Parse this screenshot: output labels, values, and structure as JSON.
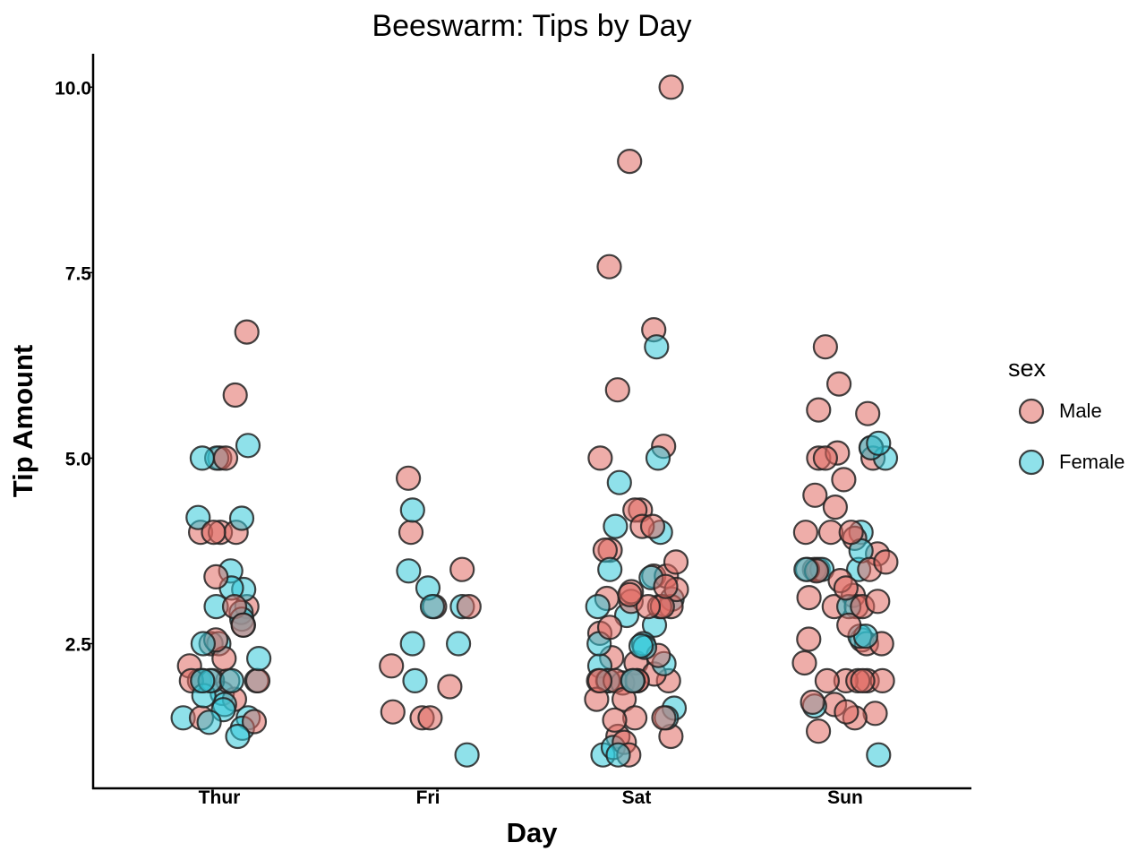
{
  "chart_data": {
    "type": "scatter",
    "subtype": "beeswarm",
    "title": "Beeswarm: Tips by Day",
    "xlabel": "Day",
    "ylabel": "Tip Amount",
    "categories": [
      "Thur",
      "Fri",
      "Sat",
      "Sun"
    ],
    "ylim": [
      0.55,
      10.45
    ],
    "yticks": [
      2.5,
      5.0,
      7.5,
      10.0
    ],
    "ytick_labels": [
      "2.5",
      "5.0",
      "7.5",
      "10.0"
    ],
    "grid": false,
    "legend": {
      "title": "sex",
      "placement": "right"
    },
    "colors": {
      "Male": "#E06A62",
      "Female": "#33C8D8",
      "edge": "#222222"
    },
    "series": [
      {
        "name": "Male",
        "points": [
          [
            "Thur",
            6.7
          ],
          [
            "Thur",
            5.85
          ],
          [
            "Thur",
            5.0
          ],
          [
            "Thur",
            5.0
          ],
          [
            "Thur",
            4.0
          ],
          [
            "Thur",
            4.0
          ],
          [
            "Thur",
            4.0
          ],
          [
            "Thur",
            4.0
          ],
          [
            "Thur",
            3.4
          ],
          [
            "Thur",
            3.0
          ],
          [
            "Thur",
            3.0
          ],
          [
            "Thur",
            2.75
          ],
          [
            "Thur",
            2.5
          ],
          [
            "Thur",
            2.55
          ],
          [
            "Thur",
            2.3
          ],
          [
            "Thur",
            2.2
          ],
          [
            "Thur",
            2.0
          ],
          [
            "Thur",
            2.0
          ],
          [
            "Thur",
            2.0
          ],
          [
            "Thur",
            2.0
          ],
          [
            "Thur",
            2.0
          ],
          [
            "Thur",
            1.75
          ],
          [
            "Thur",
            1.5
          ],
          [
            "Thur",
            1.45
          ],
          [
            "Fri",
            4.73
          ],
          [
            "Fri",
            4.0
          ],
          [
            "Fri",
            3.5
          ],
          [
            "Fri",
            3.0
          ],
          [
            "Fri",
            3.0
          ],
          [
            "Fri",
            2.2
          ],
          [
            "Fri",
            1.92
          ],
          [
            "Fri",
            1.5
          ],
          [
            "Fri",
            1.58
          ],
          [
            "Fri",
            1.5
          ],
          [
            "Sat",
            10.0
          ],
          [
            "Sat",
            9.0
          ],
          [
            "Sat",
            7.58
          ],
          [
            "Sat",
            6.73
          ],
          [
            "Sat",
            5.92
          ],
          [
            "Sat",
            5.16
          ],
          [
            "Sat",
            5.0
          ],
          [
            "Sat",
            4.3
          ],
          [
            "Sat",
            4.3
          ],
          [
            "Sat",
            4.08
          ],
          [
            "Sat",
            4.08
          ],
          [
            "Sat",
            3.76
          ],
          [
            "Sat",
            3.76
          ],
          [
            "Sat",
            3.6
          ],
          [
            "Sat",
            3.41
          ],
          [
            "Sat",
            3.41
          ],
          [
            "Sat",
            3.27
          ],
          [
            "Sat",
            3.23
          ],
          [
            "Sat",
            3.2
          ],
          [
            "Sat",
            3.16
          ],
          [
            "Sat",
            3.11
          ],
          [
            "Sat",
            3.0
          ],
          [
            "Sat",
            3.0
          ],
          [
            "Sat",
            3.0
          ],
          [
            "Sat",
            3.0
          ],
          [
            "Sat",
            3.07
          ],
          [
            "Sat",
            2.72
          ],
          [
            "Sat",
            2.64
          ],
          [
            "Sat",
            2.34
          ],
          [
            "Sat",
            2.31
          ],
          [
            "Sat",
            2.24
          ],
          [
            "Sat",
            2.09
          ],
          [
            "Sat",
            2.0
          ],
          [
            "Sat",
            2.0
          ],
          [
            "Sat",
            2.0
          ],
          [
            "Sat",
            2.0
          ],
          [
            "Sat",
            2.0
          ],
          [
            "Sat",
            2.0
          ],
          [
            "Sat",
            2.0
          ],
          [
            "Sat",
            2.0
          ],
          [
            "Sat",
            1.97
          ],
          [
            "Sat",
            1.75
          ],
          [
            "Sat",
            1.75
          ],
          [
            "Sat",
            1.5
          ],
          [
            "Sat",
            1.5
          ],
          [
            "Sat",
            1.47
          ],
          [
            "Sat",
            1.25
          ],
          [
            "Sat",
            1.25
          ],
          [
            "Sat",
            1.17
          ],
          [
            "Sat",
            1.0
          ],
          [
            "Sun",
            6.5
          ],
          [
            "Sun",
            6.0
          ],
          [
            "Sun",
            5.65
          ],
          [
            "Sun",
            5.6
          ],
          [
            "Sun",
            5.14
          ],
          [
            "Sun",
            5.07
          ],
          [
            "Sun",
            5.0
          ],
          [
            "Sun",
            5.0
          ],
          [
            "Sun",
            5.0
          ],
          [
            "Sun",
            4.71
          ],
          [
            "Sun",
            4.5
          ],
          [
            "Sun",
            4.34
          ],
          [
            "Sun",
            4.0
          ],
          [
            "Sun",
            4.0
          ],
          [
            "Sun",
            4.0
          ],
          [
            "Sun",
            3.92
          ],
          [
            "Sun",
            3.71
          ],
          [
            "Sun",
            3.6
          ],
          [
            "Sun",
            3.5
          ],
          [
            "Sun",
            3.5
          ],
          [
            "Sun",
            3.5
          ],
          [
            "Sun",
            3.5
          ],
          [
            "Sun",
            3.48
          ],
          [
            "Sun",
            3.35
          ],
          [
            "Sun",
            3.25
          ],
          [
            "Sun",
            3.15
          ],
          [
            "Sun",
            3.12
          ],
          [
            "Sun",
            3.07
          ],
          [
            "Sun",
            3.0
          ],
          [
            "Sun",
            3.0
          ],
          [
            "Sun",
            3.0
          ],
          [
            "Sun",
            2.75
          ],
          [
            "Sun",
            2.56
          ],
          [
            "Sun",
            2.55
          ],
          [
            "Sun",
            2.5
          ],
          [
            "Sun",
            2.5
          ],
          [
            "Sun",
            2.24
          ],
          [
            "Sun",
            2.0
          ],
          [
            "Sun",
            2.0
          ],
          [
            "Sun",
            2.0
          ],
          [
            "Sun",
            2.0
          ],
          [
            "Sun",
            2.0
          ],
          [
            "Sun",
            2.0
          ],
          [
            "Sun",
            1.71
          ],
          [
            "Sun",
            1.68
          ],
          [
            "Sun",
            1.58
          ],
          [
            "Sun",
            1.56
          ],
          [
            "Sun",
            1.5
          ],
          [
            "Sun",
            1.32
          ]
        ]
      },
      {
        "name": "Female",
        "points": [
          [
            "Thur",
            5.17
          ],
          [
            "Thur",
            5.0
          ],
          [
            "Thur",
            5.0
          ],
          [
            "Thur",
            4.2
          ],
          [
            "Thur",
            4.19
          ],
          [
            "Thur",
            3.48
          ],
          [
            "Thur",
            3.23
          ],
          [
            "Thur",
            3.25
          ],
          [
            "Thur",
            3.0
          ],
          [
            "Thur",
            2.92
          ],
          [
            "Thur",
            2.83
          ],
          [
            "Thur",
            2.75
          ],
          [
            "Thur",
            2.5
          ],
          [
            "Thur",
            2.5
          ],
          [
            "Thur",
            2.3
          ],
          [
            "Thur",
            2.0
          ],
          [
            "Thur",
            2.0
          ],
          [
            "Thur",
            2.0
          ],
          [
            "Thur",
            2.0
          ],
          [
            "Thur",
            2.0
          ],
          [
            "Thur",
            1.83
          ],
          [
            "Thur",
            1.8
          ],
          [
            "Thur",
            1.68
          ],
          [
            "Thur",
            1.61
          ],
          [
            "Thur",
            1.5
          ],
          [
            "Thur",
            1.5
          ],
          [
            "Thur",
            1.44
          ],
          [
            "Thur",
            1.36
          ],
          [
            "Thur",
            1.25
          ],
          [
            "Fri",
            4.3
          ],
          [
            "Fri",
            3.48
          ],
          [
            "Fri",
            3.25
          ],
          [
            "Fri",
            3.0
          ],
          [
            "Fri",
            3.0
          ],
          [
            "Fri",
            2.5
          ],
          [
            "Fri",
            2.5
          ],
          [
            "Fri",
            2.0
          ],
          [
            "Fri",
            1.0
          ],
          [
            "Sat",
            6.5
          ],
          [
            "Sat",
            5.0
          ],
          [
            "Sat",
            4.67
          ],
          [
            "Sat",
            4.08
          ],
          [
            "Sat",
            4.0
          ],
          [
            "Sat",
            3.5
          ],
          [
            "Sat",
            3.39
          ],
          [
            "Sat",
            3.1
          ],
          [
            "Sat",
            3.0
          ],
          [
            "Sat",
            2.88
          ],
          [
            "Sat",
            2.75
          ],
          [
            "Sat",
            2.5
          ],
          [
            "Sat",
            2.5
          ],
          [
            "Sat",
            2.47
          ],
          [
            "Sat",
            2.45
          ],
          [
            "Sat",
            2.23
          ],
          [
            "Sat",
            2.2
          ],
          [
            "Sat",
            2.0
          ],
          [
            "Sat",
            2.0
          ],
          [
            "Sat",
            1.63
          ],
          [
            "Sat",
            1.5
          ],
          [
            "Sat",
            1.1
          ],
          [
            "Sat",
            1.0
          ],
          [
            "Sat",
            1.0
          ],
          [
            "Sun",
            5.2
          ],
          [
            "Sun",
            5.14
          ],
          [
            "Sun",
            5.0
          ],
          [
            "Sun",
            4.0
          ],
          [
            "Sun",
            3.75
          ],
          [
            "Sun",
            3.5
          ],
          [
            "Sun",
            3.5
          ],
          [
            "Sun",
            3.5
          ],
          [
            "Sun",
            3.0
          ],
          [
            "Sun",
            2.6
          ],
          [
            "Sun",
            2.6
          ],
          [
            "Sun",
            1.66
          ],
          [
            "Sun",
            1.0
          ]
        ]
      }
    ]
  }
}
